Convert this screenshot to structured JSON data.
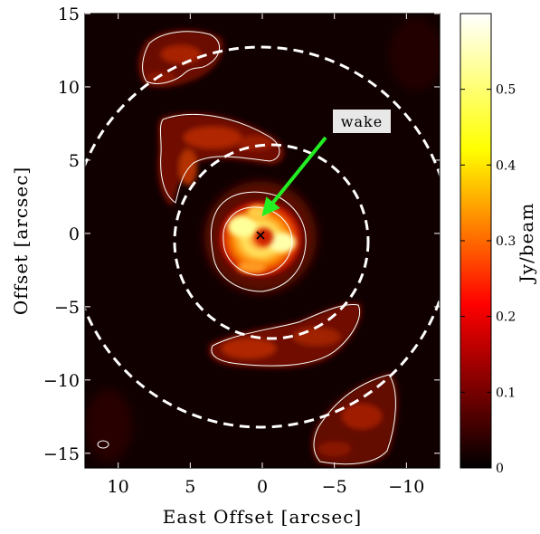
{
  "chart_data": {
    "type": "heatmap",
    "title": "",
    "xlabel": "East Offset [arcsec]",
    "ylabel": "Offset [arcsec]",
    "xlim": [
      12.3,
      -12.3
    ],
    "ylim": [
      -16,
      15
    ],
    "x_ticks": [
      10,
      5,
      0,
      -5,
      -10
    ],
    "x_tick_labels": [
      "10",
      "5",
      "0",
      "−5",
      "−10"
    ],
    "y_ticks": [
      15,
      10,
      5,
      0,
      -5,
      -10,
      -15
    ],
    "y_tick_labels": [
      "15",
      "10",
      "5",
      "0",
      "−5",
      "−10",
      "−15"
    ],
    "colorbar": {
      "label": "Jy/beam",
      "range": [
        0,
        0.6
      ],
      "ticks": [
        0,
        0.1,
        0.2,
        0.3,
        0.4,
        0.5
      ],
      "tick_labels": [
        "0",
        "0.1",
        "0.2",
        "0.3",
        "0.4",
        "0.5"
      ],
      "colormap": "hot"
    },
    "features": {
      "center_marker": {
        "x": 0,
        "y": 0,
        "symbol": "x"
      },
      "dashed_circles_radius_arcsec": [
        6.5,
        12.8
      ],
      "annotation": {
        "text": "wake",
        "points_to": {
          "x": 0,
          "y": 1.3
        },
        "from": {
          "x": -4.3,
          "y": 6.8
        },
        "arrow_color": "#22ee22"
      },
      "emission_regions": [
        {
          "name": "central ring",
          "x": 0,
          "y": 0,
          "peak_jy_beam": 0.6
        },
        {
          "name": "north arc",
          "x": 3,
          "y": 5,
          "peak_jy_beam": 0.2
        },
        {
          "name": "south arc",
          "x": -2,
          "y": -6.5,
          "peak_jy_beam": 0.2
        },
        {
          "name": "north-east arm",
          "x": 7,
          "y": 11.5,
          "peak_jy_beam": 0.15
        },
        {
          "name": "south-west arm",
          "x": -6,
          "y": -13,
          "peak_jy_beam": 0.15
        }
      ]
    }
  }
}
